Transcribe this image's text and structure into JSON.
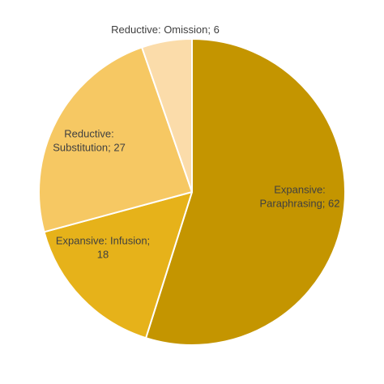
{
  "chart_data": {
    "type": "pie",
    "title": "",
    "slices": [
      {
        "label_lines": [
          "Expansive:",
          "Paraphrasing; 62"
        ],
        "category": "Expansive: Paraphrasing",
        "value": 62,
        "color": "#c49500"
      },
      {
        "label_lines": [
          "Expansive: Infusion;",
          "18"
        ],
        "category": "Expansive: Infusion",
        "value": 18,
        "color": "#e6b21a"
      },
      {
        "label_lines": [
          "Reductive:",
          "Substitution; 27"
        ],
        "category": "Reductive: Substitution",
        "value": 27,
        "color": "#f6c863"
      },
      {
        "label_lines": [
          "Reductive: Omission; 6"
        ],
        "category": "Reductive: Omission",
        "value": 6,
        "color": "#fbdcaa"
      }
    ],
    "legend": "none"
  }
}
